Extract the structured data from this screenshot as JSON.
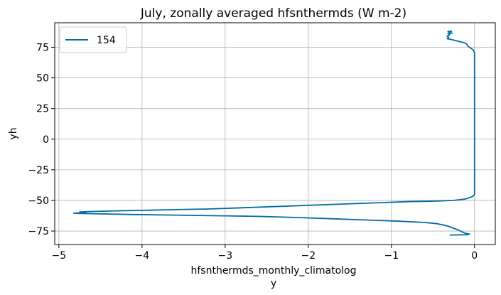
{
  "chart_data": {
    "type": "line",
    "title": "July, zonally averaged hfsnthermds (W m-2)",
    "xlabel_line1": "hfsnthermds_monthly_climatolog",
    "xlabel_line2": "y",
    "ylabel": "yh",
    "xlim": [
      -5.05,
      0.25
    ],
    "ylim": [
      -86,
      95
    ],
    "xticks": [
      -5,
      -4,
      -3,
      -2,
      -1,
      0
    ],
    "xtick_labels": [
      "−5",
      "−4",
      "−3",
      "−2",
      "−1",
      "0"
    ],
    "yticks": [
      -75,
      -50,
      -25,
      0,
      25,
      50,
      75
    ],
    "ytick_labels": [
      "−75",
      "−50",
      "−25",
      "0",
      "25",
      "50",
      "75"
    ],
    "grid": true,
    "legend_position": "upper-left",
    "colors": {
      "line": "#006ba4",
      "grid": "#b0b0b0"
    },
    "series": [
      {
        "name": "154",
        "points": [
          [
            -0.27,
            88
          ],
          [
            -0.32,
            88
          ],
          [
            -0.3,
            87
          ],
          [
            -0.27,
            86.5
          ],
          [
            -0.32,
            86
          ],
          [
            -0.3,
            85
          ],
          [
            -0.33,
            84
          ],
          [
            -0.31,
            83
          ],
          [
            -0.33,
            82
          ],
          [
            -0.26,
            81
          ],
          [
            -0.2,
            80
          ],
          [
            -0.14,
            79
          ],
          [
            -0.1,
            78
          ],
          [
            -0.08,
            76
          ],
          [
            -0.06,
            75
          ],
          [
            -0.04,
            74
          ],
          [
            -0.02,
            73
          ],
          [
            -0.01,
            72
          ],
          [
            0.0,
            70
          ],
          [
            0.0,
            65
          ],
          [
            0.0,
            50
          ],
          [
            0.0,
            25
          ],
          [
            0.0,
            0
          ],
          [
            0.0,
            -25
          ],
          [
            0.0,
            -40
          ],
          [
            0.0,
            -45
          ],
          [
            -0.01,
            -46
          ],
          [
            -0.03,
            -47
          ],
          [
            -0.07,
            -48
          ],
          [
            -0.12,
            -49
          ],
          [
            -0.25,
            -50
          ],
          [
            -0.45,
            -50.5
          ],
          [
            -0.8,
            -51
          ],
          [
            -1.2,
            -52
          ],
          [
            -1.6,
            -53
          ],
          [
            -2.0,
            -54
          ],
          [
            -2.4,
            -55
          ],
          [
            -2.8,
            -56
          ],
          [
            -3.2,
            -57
          ],
          [
            -3.6,
            -57.5
          ],
          [
            -3.9,
            -58
          ],
          [
            -4.3,
            -58.5
          ],
          [
            -4.6,
            -59
          ],
          [
            -4.75,
            -59.5
          ],
          [
            -4.68,
            -60
          ],
          [
            -4.82,
            -60.5
          ],
          [
            -4.5,
            -61
          ],
          [
            -4.1,
            -61.5
          ],
          [
            -3.6,
            -62
          ],
          [
            -3.1,
            -62.5
          ],
          [
            -2.6,
            -63
          ],
          [
            -2.1,
            -64
          ],
          [
            -1.7,
            -65
          ],
          [
            -1.3,
            -66
          ],
          [
            -0.9,
            -67
          ],
          [
            -0.6,
            -68
          ],
          [
            -0.45,
            -69
          ],
          [
            -0.38,
            -70
          ],
          [
            -0.32,
            -71
          ],
          [
            -0.28,
            -72
          ],
          [
            -0.24,
            -73
          ],
          [
            -0.2,
            -74
          ],
          [
            -0.17,
            -75
          ],
          [
            -0.14,
            -76
          ],
          [
            -0.1,
            -77
          ],
          [
            -0.06,
            -77.5
          ],
          [
            -0.09,
            -78
          ],
          [
            -0.3,
            -78.3
          ]
        ]
      }
    ]
  }
}
